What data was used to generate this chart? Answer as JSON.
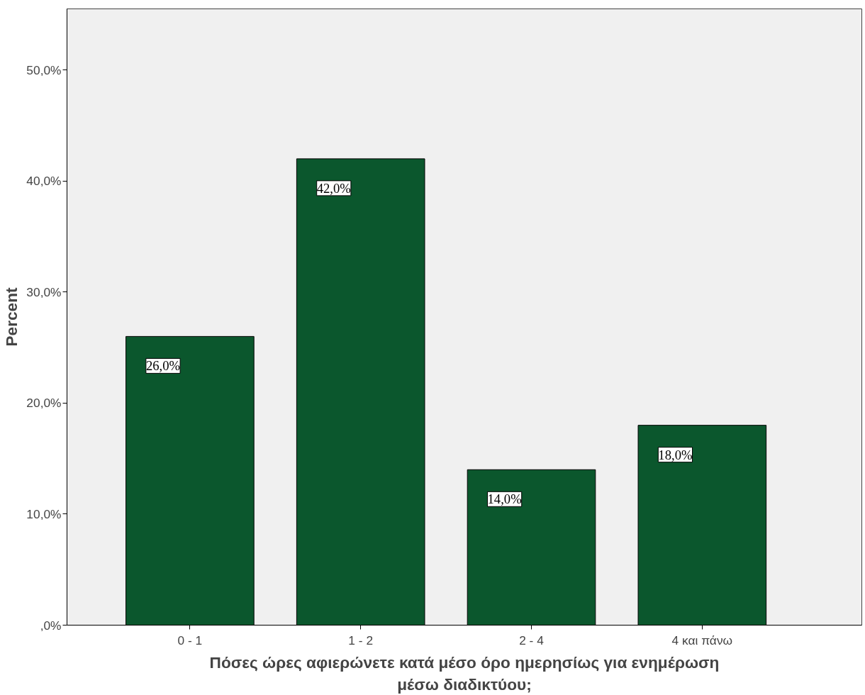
{
  "chart_data": {
    "type": "bar",
    "xlabel": "Πόσες ώρες αφιερώνετε κατά μέσο όρο ημερησίως για ενημέρωση μέσω διαδικτύου;",
    "ylabel": "Percent",
    "categories": [
      "0 - 1",
      "1 - 2",
      "2 - 4",
      "4 και πάνω"
    ],
    "values": [
      26.0,
      42.0,
      14.0,
      18.0
    ],
    "value_labels": [
      "26,0%",
      "42,0%",
      "14,0%",
      "18,0%"
    ],
    "color": "#0b572d",
    "ylim": [
      0,
      55.5
    ],
    "yticks": [
      {
        "value": 0,
        "label": ",0%"
      },
      {
        "value": 10,
        "label": "10,0%"
      },
      {
        "value": 20,
        "label": "20,0%"
      },
      {
        "value": 30,
        "label": "30,0%"
      },
      {
        "value": 40,
        "label": "40,0%"
      },
      {
        "value": 50,
        "label": "50,0%"
      }
    ],
    "grid": false
  }
}
